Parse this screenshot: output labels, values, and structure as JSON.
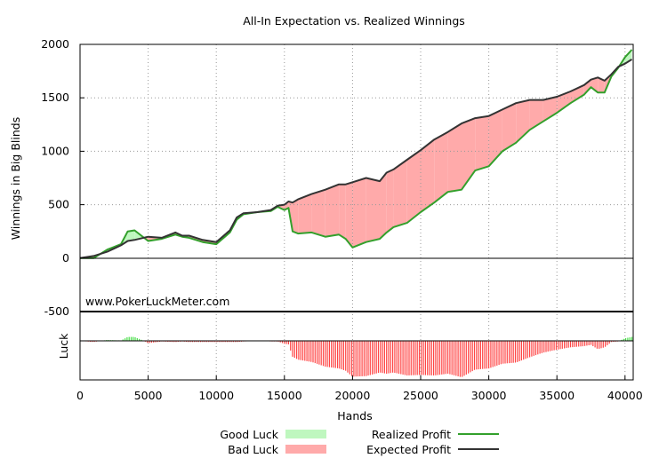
{
  "chart_data": {
    "type": "line",
    "title": "All-In Expectation vs. Realized Winnings",
    "xlabel": "Hands",
    "ylabel": "Winnings in Big Blinds",
    "luck_label": "Luck",
    "watermark": "www.PokerLuckMeter.com",
    "x_ticks": [
      0,
      5000,
      10000,
      15000,
      20000,
      25000,
      30000,
      35000,
      40000
    ],
    "y_ticks": [
      -500,
      0,
      500,
      1000,
      1500,
      2000
    ],
    "xlim": [
      0,
      40600
    ],
    "ylim": [
      -500,
      2000
    ],
    "grid": true,
    "legend_position": "bottom",
    "legend": {
      "good_luck": "Good Luck",
      "bad_luck": "Bad Luck",
      "realized": "Realized Profit",
      "expected": "Expected Profit"
    },
    "colors": {
      "realized": "#33a02c",
      "expected": "#333333",
      "good_luck": "#bff7bf",
      "bad_luck": "#ffaaaa",
      "luck_good_bar": "#44dd44",
      "luck_bad_bar": "#ff4444"
    },
    "x": [
      0,
      1000,
      2000,
      3000,
      3500,
      4000,
      5000,
      6000,
      7000,
      7500,
      8000,
      9000,
      10000,
      11000,
      11500,
      12000,
      13000,
      14000,
      14500,
      15000,
      15300,
      15600,
      16000,
      17000,
      18000,
      19000,
      19500,
      20000,
      21000,
      22000,
      22500,
      23000,
      24000,
      25000,
      26000,
      27000,
      28000,
      29000,
      30000,
      31000,
      32000,
      33000,
      34000,
      35000,
      36000,
      37000,
      37500,
      38000,
      38500,
      39000,
      39500,
      40000,
      40500
    ],
    "series": [
      {
        "name": "Realized Profit",
        "values": [
          0,
          0,
          80,
          130,
          250,
          260,
          160,
          180,
          220,
          200,
          190,
          150,
          130,
          240,
          360,
          410,
          430,
          440,
          480,
          450,
          470,
          250,
          230,
          240,
          200,
          220,
          180,
          100,
          150,
          180,
          240,
          290,
          330,
          430,
          520,
          620,
          640,
          820,
          860,
          1000,
          1080,
          1200,
          1280,
          1360,
          1450,
          1530,
          1600,
          1550,
          1550,
          1700,
          1780,
          1880,
          1950
        ]
      },
      {
        "name": "Expected Profit",
        "values": [
          0,
          20,
          60,
          120,
          160,
          170,
          200,
          190,
          240,
          210,
          210,
          170,
          150,
          260,
          380,
          420,
          430,
          450,
          490,
          500,
          530,
          520,
          550,
          600,
          640,
          690,
          690,
          710,
          750,
          720,
          800,
          830,
          920,
          1010,
          1110,
          1180,
          1260,
          1310,
          1330,
          1390,
          1450,
          1480,
          1480,
          1510,
          1560,
          1620,
          1670,
          1690,
          1660,
          1720,
          1790,
          1820,
          1860
        ]
      }
    ]
  }
}
